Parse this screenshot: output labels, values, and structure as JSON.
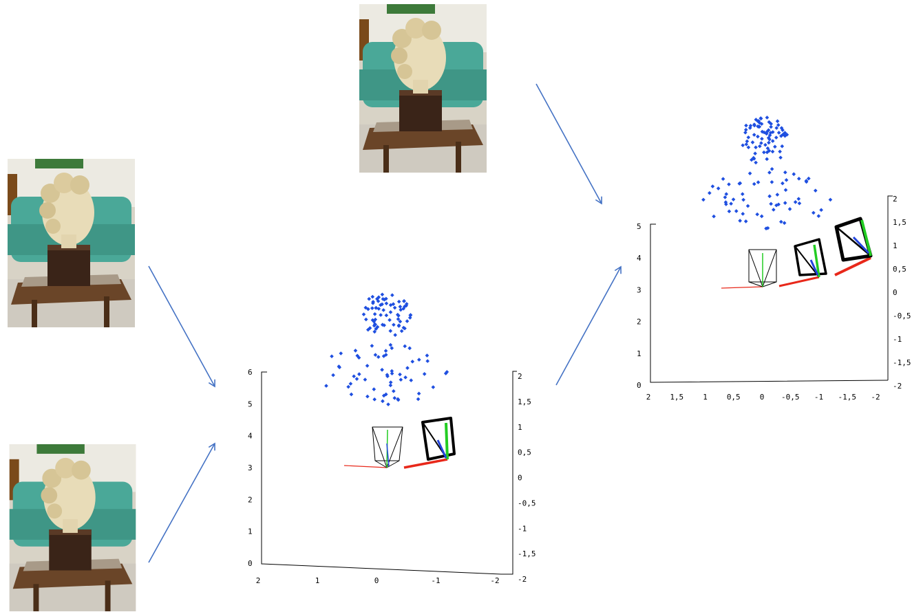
{
  "plots": [
    {
      "z_ticks": [
        "0",
        "1",
        "2",
        "3",
        "4",
        "5",
        "6"
      ],
      "x_ticks": [
        "2",
        "1",
        "0",
        "-1",
        "-2"
      ],
      "y_ticks": [
        "2",
        "1,5",
        "1",
        "0,5",
        "0",
        "-0,5",
        "-1",
        "-1,5",
        "-2"
      ]
    },
    {
      "z_ticks": [
        "0",
        "1",
        "2",
        "3",
        "4",
        "5"
      ],
      "x_ticks": [
        "2",
        "1,5",
        "1",
        "0,5",
        "0",
        "-0,5",
        "-1",
        "-1,5",
        "-2"
      ],
      "y_ticks": [
        "2",
        "1,5",
        "1",
        "0,5",
        "0",
        "-0,5",
        "-1",
        "-1,5",
        "-2"
      ]
    }
  ]
}
